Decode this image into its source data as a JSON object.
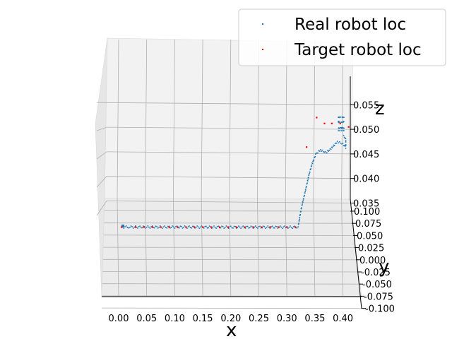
{
  "chart_data": {
    "type": "scatter",
    "projection": "3d",
    "title": "",
    "xlabel": "x",
    "ylabel": "y",
    "zlabel": "z",
    "x_ticks": [
      "0.00",
      "0.05",
      "0.10",
      "0.15",
      "0.20",
      "0.25",
      "0.30",
      "0.35",
      "0.40"
    ],
    "y_ticks": [
      "0.100",
      "0.075",
      "0.050",
      "0.025",
      "0.000",
      "-0.025",
      "-0.050",
      "-0.075",
      "-0.100"
    ],
    "z_ticks": [
      "0.035",
      "0.040",
      "0.045",
      "0.050",
      "0.055"
    ],
    "xlim": [
      -0.03,
      0.43
    ],
    "ylim": [
      -0.1,
      0.1
    ],
    "zlim": [
      0.031,
      0.058
    ],
    "legend_position": "top-right",
    "grid": true,
    "series": [
      {
        "name": "Real robot loc",
        "color": "#1f77b4",
        "marker": "dot",
        "path": [
          [
            0.007,
            0.052,
            0.0318
          ],
          [
            0.02,
            0.052,
            0.0318
          ],
          [
            0.06,
            0.05,
            0.0318
          ],
          [
            0.1,
            0.05,
            0.0318
          ],
          [
            0.15,
            0.048,
            0.0318
          ],
          [
            0.2,
            0.046,
            0.0318
          ],
          [
            0.25,
            0.046,
            0.0318
          ],
          [
            0.3,
            0.046,
            0.0318
          ],
          [
            0.32,
            0.046,
            0.0318
          ],
          [
            0.325,
            0.05,
            0.0335
          ],
          [
            0.33,
            0.05,
            0.036
          ],
          [
            0.335,
            0.05,
            0.0385
          ],
          [
            0.34,
            0.05,
            0.041
          ],
          [
            0.345,
            0.05,
            0.043
          ],
          [
            0.352,
            0.05,
            0.045
          ],
          [
            0.36,
            0.05,
            0.0458
          ],
          [
            0.37,
            0.05,
            0.0452
          ],
          [
            0.38,
            0.05,
            0.0462
          ],
          [
            0.39,
            0.05,
            0.0475
          ],
          [
            0.4,
            0.05,
            0.047
          ],
          [
            0.405,
            0.05,
            0.0463
          ],
          [
            0.405,
            0.05,
            0.048
          ],
          [
            0.4,
            0.05,
            0.0488
          ]
        ]
      },
      {
        "name": "Target robot loc",
        "color": "#ff0000",
        "marker": "dot",
        "points": [
          [
            0.005,
            0.05,
            0.0318
          ],
          [
            0.03,
            0.05,
            0.0318
          ],
          [
            0.045,
            0.05,
            0.0318
          ],
          [
            0.06,
            0.05,
            0.0318
          ],
          [
            0.075,
            0.05,
            0.0318
          ],
          [
            0.09,
            0.05,
            0.0318
          ],
          [
            0.105,
            0.05,
            0.0318
          ],
          [
            0.12,
            0.05,
            0.0318
          ],
          [
            0.135,
            0.05,
            0.0318
          ],
          [
            0.15,
            0.05,
            0.0318
          ],
          [
            0.165,
            0.05,
            0.0318
          ],
          [
            0.18,
            0.05,
            0.0318
          ],
          [
            0.195,
            0.05,
            0.0318
          ],
          [
            0.21,
            0.05,
            0.0318
          ],
          [
            0.225,
            0.05,
            0.0318
          ],
          [
            0.24,
            0.05,
            0.0318
          ],
          [
            0.255,
            0.05,
            0.0318
          ],
          [
            0.27,
            0.05,
            0.0318
          ],
          [
            0.285,
            0.05,
            0.0318
          ],
          [
            0.3,
            0.05,
            0.0318
          ],
          [
            0.315,
            0.05,
            0.0318
          ],
          [
            0.335,
            0.05,
            0.0464
          ],
          [
            0.353,
            0.05,
            0.0524
          ],
          [
            0.367,
            0.05,
            0.0512
          ],
          [
            0.38,
            0.05,
            0.0512
          ],
          [
            0.395,
            0.05,
            0.0512
          ],
          [
            0.41,
            0.05,
            0.0505
          ]
        ]
      }
    ]
  }
}
